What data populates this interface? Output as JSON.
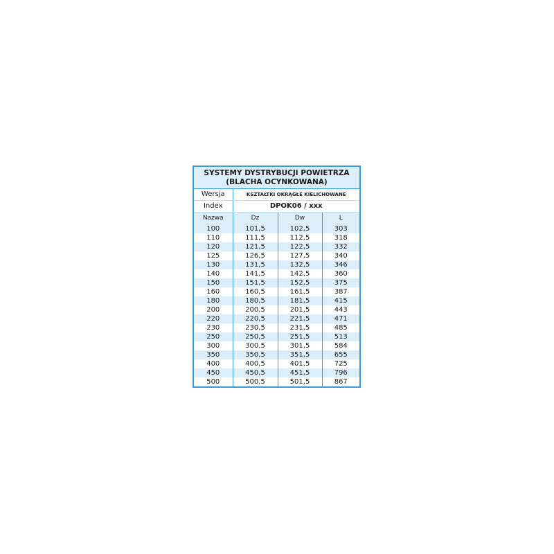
{
  "title_line1": "SYSTEMY DYSTRYBUCJI POWIETRZA",
  "title_line2": "(BLACHA OCYNKOWANA)",
  "wersja_label": "Wersja",
  "wersja_value": "KSZTAŁTKI OKRĄGŁE KIELICHOWANE",
  "index_label": "Index",
  "index_value": "DPOK06 / xxx",
  "columns": [
    "Nazwa",
    "Dz",
    "Dw",
    "L"
  ],
  "rows": [
    [
      "100",
      "101,5",
      "102,5",
      "303"
    ],
    [
      "110",
      "111,5",
      "112,5",
      "318"
    ],
    [
      "120",
      "121,5",
      "122,5",
      "332"
    ],
    [
      "125",
      "126,5",
      "127,5",
      "340"
    ],
    [
      "130",
      "131,5",
      "132,5",
      "346"
    ],
    [
      "140",
      "141,5",
      "142,5",
      "360"
    ],
    [
      "150",
      "151,5",
      "152,5",
      "375"
    ],
    [
      "160",
      "160,5",
      "161,5",
      "387"
    ],
    [
      "180",
      "180,5",
      "181,5",
      "415"
    ],
    [
      "200",
      "200,5",
      "201,5",
      "443"
    ],
    [
      "220",
      "220,5",
      "221,5",
      "471"
    ],
    [
      "230",
      "230,5",
      "231,5",
      "485"
    ],
    [
      "250",
      "250,5",
      "251,5",
      "513"
    ],
    [
      "300",
      "300,5",
      "301,5",
      "584"
    ],
    [
      "350",
      "350,5",
      "351,5",
      "655"
    ],
    [
      "400",
      "400,5",
      "401,5",
      "725"
    ],
    [
      "450",
      "450,5",
      "451,5",
      "796"
    ],
    [
      "500",
      "500,5",
      "501,5",
      "867"
    ]
  ],
  "colors": {
    "border": "#3d9ad8",
    "band": "#dbeefa"
  }
}
